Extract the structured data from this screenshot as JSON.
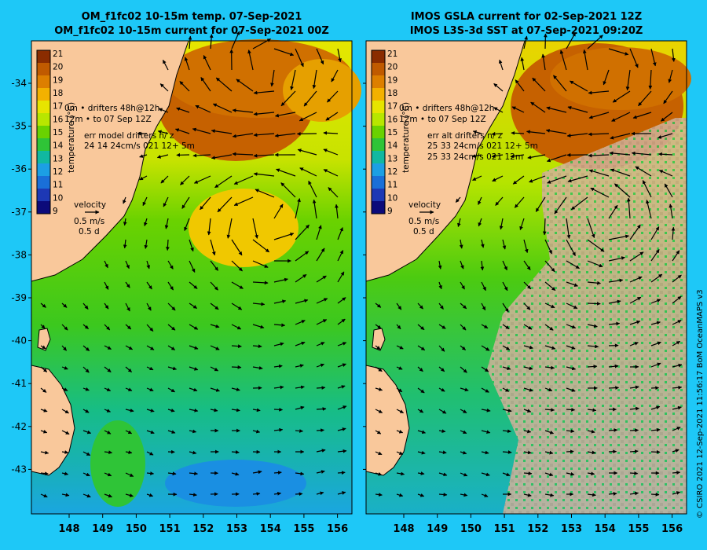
{
  "colors": {
    "page_bg": "#1ec8f7",
    "land": "#f9c89b",
    "no_data": "#d2b29a",
    "drifter": "#ff00ff"
  },
  "colorbar": {
    "label": "temperature (°C)",
    "ticks": [
      "21",
      "20",
      "19",
      "18",
      "17",
      "16",
      "15",
      "14",
      "13",
      "12",
      "11",
      "10",
      "9"
    ],
    "colors": [
      "#8a2c00",
      "#c05a00",
      "#dd7f00",
      "#f3b100",
      "#e7e400",
      "#b8e600",
      "#6ad200",
      "#2fc437",
      "#11b8a0",
      "#1c9fe4",
      "#1a6fd8",
      "#1d38b5",
      "#0c0a7a"
    ]
  },
  "panels": [
    {
      "title1": "OM_f1fc02 10-15m temp. 07-Sep-2021",
      "title2": "OM_f1fc02 10-15m current for 07-Sep-2021 00Z",
      "legend": {
        "drifter_line1": "0m • drifters 48h@12h",
        "drifter_line2": "12m • to 07 Sep 12Z",
        "err_line1": "err model drifters n/ z",
        "err_line2": "24 14 24cm/s 021 12+ 5m",
        "err_line3": ""
      },
      "velocity": {
        "label": "velocity",
        "speed": "0.5 m/s",
        "duration": "0.5 d"
      }
    },
    {
      "title1": "IMOS GSLA current for 02-Sep-2021 12Z",
      "title2": "IMOS L3S-3d SST at 07-Sep-2021 09:20Z",
      "legend": {
        "drifter_line1": "0m • drifters 48h@12h",
        "drifter_line2": "12m • to 07 Sep 12Z",
        "err_line1": "err alt drifters n/ z",
        "err_line2": "25 33 24cm/s 021 12+ 5m",
        "err_line3": "25 33 24cm/s 021 12m"
      },
      "velocity": {
        "label": "velocity",
        "speed": "0.5 m/s",
        "duration": "0.5 d"
      }
    }
  ],
  "lat_ticks": [
    "-34",
    "-35",
    "-36",
    "-37",
    "-38",
    "-39",
    "-40",
    "-41",
    "-42",
    "-43"
  ],
  "lon_ticks": [
    "148",
    "149",
    "150",
    "151",
    "152",
    "153",
    "154",
    "155",
    "156"
  ],
  "credit": "© CSIRO 2021   12-Sep-2021 11:56:17 BoM OceanMAPS v3"
}
